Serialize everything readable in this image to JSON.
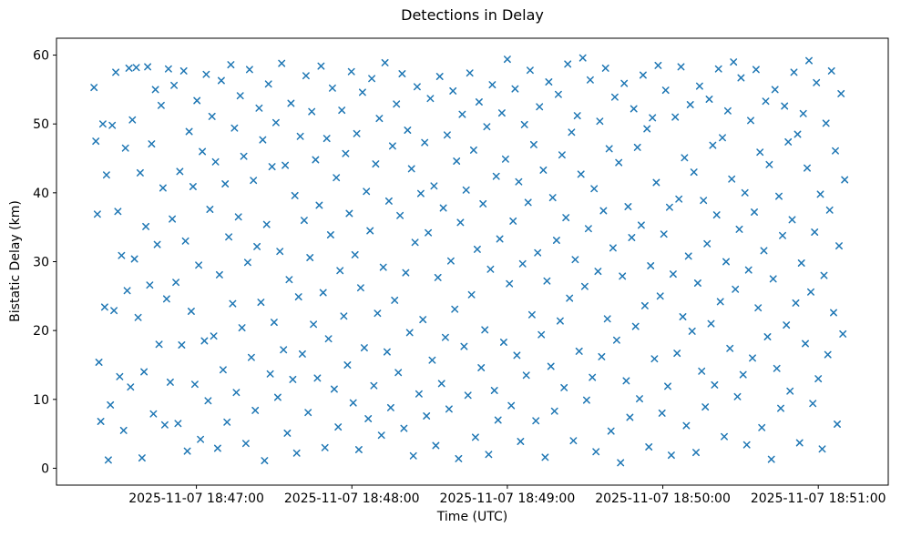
{
  "chart_data": {
    "type": "scatter",
    "title": "Detections in Delay",
    "xlabel": "Time (UTC)",
    "ylabel": "Bistatic Delay (km)",
    "marker": "x",
    "marker_color": "#1f77b4",
    "x_unit": "seconds after 2025-11-07 18:46:00 UTC",
    "xlim": [
      6,
      327
    ],
    "ylim": [
      -2.45,
      62.45
    ],
    "grid": false,
    "legend": null,
    "xticks": [
      {
        "t": 60,
        "label": "2025-11-07 18:47:00"
      },
      {
        "t": 120,
        "label": "2025-11-07 18:48:00"
      },
      {
        "t": 180,
        "label": "2025-11-07 18:49:00"
      },
      {
        "t": 240,
        "label": "2025-11-07 18:50:00"
      },
      {
        "t": 300,
        "label": "2025-11-07 18:51:00"
      }
    ],
    "yticks": [
      0,
      10,
      20,
      30,
      40,
      50,
      60
    ],
    "points": [
      [
        20.5,
        55.3
      ],
      [
        21.2,
        47.5
      ],
      [
        21.8,
        36.9
      ],
      [
        22.4,
        15.4
      ],
      [
        23.1,
        6.8
      ],
      [
        23.9,
        50.0
      ],
      [
        24.6,
        23.4
      ],
      [
        25.3,
        42.6
      ],
      [
        26.0,
        1.2
      ],
      [
        26.8,
        9.2
      ],
      [
        27.5,
        49.8
      ],
      [
        28.2,
        22.9
      ],
      [
        28.9,
        57.5
      ],
      [
        29.7,
        37.3
      ],
      [
        30.4,
        13.3
      ],
      [
        31.1,
        30.9
      ],
      [
        31.9,
        5.5
      ],
      [
        32.6,
        46.5
      ],
      [
        33.3,
        25.8
      ],
      [
        34.0,
        58.1
      ],
      [
        34.6,
        11.8
      ],
      [
        35.3,
        50.6
      ],
      [
        36.1,
        30.4
      ],
      [
        36.8,
        58.2
      ],
      [
        37.5,
        21.9
      ],
      [
        38.3,
        42.9
      ],
      [
        39.0,
        1.5
      ],
      [
        39.8,
        14.0
      ],
      [
        40.5,
        35.1
      ],
      [
        41.2,
        58.3
      ],
      [
        42.0,
        26.6
      ],
      [
        42.7,
        47.1
      ],
      [
        43.4,
        7.9
      ],
      [
        44.2,
        55.0
      ],
      [
        44.9,
        32.5
      ],
      [
        45.6,
        18.0
      ],
      [
        46.4,
        52.7
      ],
      [
        47.1,
        40.7
      ],
      [
        47.8,
        6.3
      ],
      [
        48.5,
        24.6
      ],
      [
        49.2,
        58.0
      ],
      [
        49.9,
        12.5
      ],
      [
        50.7,
        36.2
      ],
      [
        51.4,
        55.6
      ],
      [
        52.1,
        27.0
      ],
      [
        52.9,
        6.5
      ],
      [
        53.6,
        43.1
      ],
      [
        54.3,
        17.9
      ],
      [
        55.1,
        57.7
      ],
      [
        55.8,
        33.0
      ],
      [
        56.5,
        2.5
      ],
      [
        57.2,
        48.9
      ],
      [
        58.0,
        22.8
      ],
      [
        58.7,
        40.9
      ],
      [
        59.4,
        12.2
      ],
      [
        60.2,
        53.4
      ],
      [
        60.9,
        29.5
      ],
      [
        61.6,
        4.2
      ],
      [
        62.3,
        46.0
      ],
      [
        63.1,
        18.5
      ],
      [
        63.8,
        57.2
      ],
      [
        64.5,
        9.8
      ],
      [
        65.2,
        37.6
      ],
      [
        66.0,
        51.1
      ],
      [
        66.7,
        19.2
      ],
      [
        67.4,
        44.5
      ],
      [
        68.2,
        2.9
      ],
      [
        68.9,
        28.1
      ],
      [
        69.6,
        56.3
      ],
      [
        70.3,
        14.3
      ],
      [
        71.1,
        41.3
      ],
      [
        71.8,
        6.7
      ],
      [
        72.5,
        33.6
      ],
      [
        73.3,
        58.6
      ],
      [
        74.0,
        23.9
      ],
      [
        74.7,
        49.4
      ],
      [
        75.4,
        11.0
      ],
      [
        76.2,
        36.5
      ],
      [
        76.9,
        54.1
      ],
      [
        77.6,
        20.4
      ],
      [
        78.3,
        45.3
      ],
      [
        79.1,
        3.6
      ],
      [
        79.8,
        29.9
      ],
      [
        80.5,
        57.9
      ],
      [
        81.2,
        16.1
      ],
      [
        82.0,
        41.8
      ],
      [
        82.7,
        8.4
      ],
      [
        83.4,
        32.2
      ],
      [
        84.2,
        52.3
      ],
      [
        84.9,
        24.1
      ],
      [
        85.6,
        47.7
      ],
      [
        86.3,
        1.1
      ],
      [
        87.1,
        35.4
      ],
      [
        87.8,
        55.8
      ],
      [
        88.5,
        13.7
      ],
      [
        89.2,
        43.8
      ],
      [
        90.0,
        21.2
      ],
      [
        90.7,
        50.2
      ],
      [
        91.4,
        10.3
      ],
      [
        92.2,
        31.5
      ],
      [
        92.9,
        58.8
      ],
      [
        93.6,
        17.2
      ],
      [
        94.3,
        44.0
      ],
      [
        95.1,
        5.1
      ],
      [
        95.8,
        27.4
      ],
      [
        96.5,
        53.0
      ],
      [
        97.2,
        12.9
      ],
      [
        98.0,
        39.6
      ],
      [
        98.7,
        2.2
      ],
      [
        99.4,
        24.9
      ],
      [
        100.1,
        48.2
      ],
      [
        100.9,
        16.6
      ],
      [
        101.6,
        36.0
      ],
      [
        102.3,
        57.0
      ],
      [
        103.1,
        8.1
      ],
      [
        103.8,
        30.6
      ],
      [
        104.5,
        51.8
      ],
      [
        105.2,
        20.9
      ],
      [
        106.0,
        44.8
      ],
      [
        106.7,
        13.1
      ],
      [
        107.4,
        38.2
      ],
      [
        108.1,
        58.4
      ],
      [
        108.9,
        25.5
      ],
      [
        109.6,
        3.0
      ],
      [
        110.3,
        47.9
      ],
      [
        111.0,
        18.8
      ],
      [
        111.8,
        33.9
      ],
      [
        112.5,
        55.2
      ],
      [
        113.2,
        11.5
      ],
      [
        114.0,
        42.2
      ],
      [
        114.7,
        6.0
      ],
      [
        115.4,
        28.7
      ],
      [
        116.1,
        52.0
      ],
      [
        116.9,
        22.1
      ],
      [
        117.6,
        45.7
      ],
      [
        118.3,
        15.0
      ],
      [
        119.0,
        37.0
      ],
      [
        119.8,
        57.6
      ],
      [
        120.5,
        9.5
      ],
      [
        121.2,
        31.0
      ],
      [
        121.9,
        48.6
      ],
      [
        122.7,
        2.7
      ],
      [
        123.4,
        26.2
      ],
      [
        124.1,
        54.6
      ],
      [
        124.8,
        17.5
      ],
      [
        125.6,
        40.2
      ],
      [
        126.3,
        7.2
      ],
      [
        127.0,
        34.5
      ],
      [
        127.7,
        56.6
      ],
      [
        128.5,
        12.0
      ],
      [
        129.2,
        44.2
      ],
      [
        129.9,
        22.5
      ],
      [
        130.6,
        50.8
      ],
      [
        131.4,
        4.8
      ],
      [
        132.1,
        29.2
      ],
      [
        132.8,
        58.9
      ],
      [
        133.6,
        16.9
      ],
      [
        134.3,
        38.8
      ],
      [
        135.0,
        8.8
      ],
      [
        135.7,
        46.8
      ],
      [
        136.5,
        24.4
      ],
      [
        137.2,
        52.9
      ],
      [
        137.9,
        13.9
      ],
      [
        138.6,
        36.7
      ],
      [
        139.4,
        57.3
      ],
      [
        140.1,
        5.8
      ],
      [
        140.8,
        28.4
      ],
      [
        141.5,
        49.1
      ],
      [
        142.3,
        19.7
      ],
      [
        143.0,
        43.5
      ],
      [
        143.7,
        1.8
      ],
      [
        144.4,
        32.8
      ],
      [
        145.2,
        55.4
      ],
      [
        145.9,
        10.8
      ],
      [
        146.6,
        39.9
      ],
      [
        147.4,
        21.6
      ],
      [
        148.1,
        47.3
      ],
      [
        148.8,
        7.6
      ],
      [
        149.5,
        34.2
      ],
      [
        150.3,
        53.7
      ],
      [
        151.0,
        15.7
      ],
      [
        151.7,
        41.0
      ],
      [
        152.4,
        3.3
      ],
      [
        153.2,
        27.7
      ],
      [
        153.9,
        56.9
      ],
      [
        154.6,
        12.3
      ],
      [
        155.3,
        37.8
      ],
      [
        156.1,
        19.0
      ],
      [
        156.8,
        48.4
      ],
      [
        157.5,
        8.6
      ],
      [
        158.2,
        30.1
      ],
      [
        159.0,
        54.8
      ],
      [
        159.7,
        23.1
      ],
      [
        160.4,
        44.6
      ],
      [
        161.2,
        1.4
      ],
      [
        161.9,
        35.7
      ],
      [
        162.6,
        51.4
      ],
      [
        163.3,
        17.7
      ],
      [
        164.1,
        40.4
      ],
      [
        164.8,
        10.6
      ],
      [
        165.5,
        57.4
      ],
      [
        166.2,
        25.2
      ],
      [
        167.0,
        46.2
      ],
      [
        167.7,
        4.5
      ],
      [
        168.4,
        31.8
      ],
      [
        169.1,
        53.2
      ],
      [
        169.9,
        14.6
      ],
      [
        170.6,
        38.4
      ],
      [
        171.3,
        20.1
      ],
      [
        172.1,
        49.6
      ],
      [
        172.8,
        2.0
      ],
      [
        173.5,
        28.9
      ],
      [
        174.2,
        55.7
      ],
      [
        175.0,
        11.3
      ],
      [
        175.7,
        42.4
      ],
      [
        176.4,
        7.0
      ],
      [
        177.1,
        33.3
      ],
      [
        177.9,
        51.6
      ],
      [
        178.6,
        18.3
      ],
      [
        179.3,
        44.9
      ],
      [
        180.0,
        59.4
      ],
      [
        180.8,
        26.8
      ],
      [
        181.5,
        9.1
      ],
      [
        182.2,
        35.9
      ],
      [
        183.0,
        55.1
      ],
      [
        183.7,
        16.4
      ],
      [
        184.4,
        41.6
      ],
      [
        185.1,
        3.9
      ],
      [
        185.9,
        29.7
      ],
      [
        186.6,
        49.9
      ],
      [
        187.3,
        13.5
      ],
      [
        188.0,
        38.6
      ],
      [
        188.8,
        57.8
      ],
      [
        189.5,
        22.3
      ],
      [
        190.2,
        47.0
      ],
      [
        191.0,
        6.9
      ],
      [
        191.7,
        31.3
      ],
      [
        192.4,
        52.5
      ],
      [
        193.1,
        19.4
      ],
      [
        193.9,
        43.3
      ],
      [
        194.6,
        1.6
      ],
      [
        195.3,
        27.2
      ],
      [
        196.0,
        56.1
      ],
      [
        196.8,
        14.8
      ],
      [
        197.5,
        39.3
      ],
      [
        198.2,
        8.3
      ],
      [
        199.0,
        33.1
      ],
      [
        199.7,
        54.3
      ],
      [
        200.4,
        21.4
      ],
      [
        201.1,
        45.5
      ],
      [
        201.9,
        11.7
      ],
      [
        202.6,
        36.4
      ],
      [
        203.3,
        58.7
      ],
      [
        204.0,
        24.7
      ],
      [
        204.8,
        48.8
      ],
      [
        205.5,
        4.0
      ],
      [
        206.2,
        30.3
      ],
      [
        207.0,
        51.2
      ],
      [
        207.7,
        17.0
      ],
      [
        208.4,
        42.7
      ],
      [
        209.1,
        59.6
      ],
      [
        209.9,
        26.4
      ],
      [
        210.6,
        9.9
      ],
      [
        211.3,
        34.8
      ],
      [
        212.0,
        56.4
      ],
      [
        212.8,
        13.2
      ],
      [
        213.5,
        40.6
      ],
      [
        214.2,
        2.4
      ],
      [
        215.0,
        28.6
      ],
      [
        215.7,
        50.4
      ],
      [
        216.4,
        16.2
      ],
      [
        217.1,
        37.4
      ],
      [
        217.9,
        58.1
      ],
      [
        218.6,
        21.7
      ],
      [
        219.3,
        46.4
      ],
      [
        220.0,
        5.4
      ],
      [
        220.8,
        32.0
      ],
      [
        221.5,
        53.9
      ],
      [
        222.2,
        18.6
      ],
      [
        223.0,
        44.4
      ],
      [
        223.7,
        0.8
      ],
      [
        224.4,
        27.9
      ],
      [
        225.1,
        55.9
      ],
      [
        225.9,
        12.7
      ],
      [
        226.6,
        38.0
      ],
      [
        227.3,
        7.4
      ],
      [
        228.0,
        33.5
      ],
      [
        228.8,
        52.2
      ],
      [
        229.5,
        20.6
      ],
      [
        230.2,
        46.6
      ],
      [
        231.0,
        10.1
      ],
      [
        231.7,
        35.3
      ],
      [
        232.4,
        57.1
      ],
      [
        233.1,
        23.6
      ],
      [
        233.9,
        49.3
      ],
      [
        234.6,
        3.1
      ],
      [
        235.3,
        29.4
      ],
      [
        236.0,
        50.9
      ],
      [
        236.8,
        15.9
      ],
      [
        237.5,
        41.5
      ],
      [
        238.2,
        58.5
      ],
      [
        239.0,
        25.0
      ],
      [
        239.7,
        8.0
      ],
      [
        240.4,
        34.0
      ],
      [
        241.1,
        54.9
      ],
      [
        241.9,
        11.9
      ],
      [
        242.6,
        37.9
      ],
      [
        243.3,
        1.9
      ],
      [
        244.0,
        28.2
      ],
      [
        244.8,
        51.0
      ],
      [
        245.5,
        16.7
      ],
      [
        246.2,
        39.1
      ],
      [
        247.0,
        58.3
      ],
      [
        247.7,
        22.0
      ],
      [
        248.4,
        45.1
      ],
      [
        249.1,
        6.2
      ],
      [
        249.9,
        30.8
      ],
      [
        250.6,
        52.8
      ],
      [
        251.3,
        19.9
      ],
      [
        252.0,
        43.0
      ],
      [
        252.8,
        2.3
      ],
      [
        253.5,
        26.9
      ],
      [
        254.2,
        55.5
      ],
      [
        255.0,
        14.1
      ],
      [
        255.7,
        38.9
      ],
      [
        256.4,
        8.9
      ],
      [
        257.1,
        32.6
      ],
      [
        257.9,
        53.6
      ],
      [
        258.6,
        21.0
      ],
      [
        259.3,
        46.9
      ],
      [
        260.0,
        12.1
      ],
      [
        260.8,
        36.8
      ],
      [
        261.5,
        58.0
      ],
      [
        262.2,
        24.2
      ],
      [
        263.0,
        48.0
      ],
      [
        263.7,
        4.6
      ],
      [
        264.4,
        30.0
      ],
      [
        265.1,
        51.9
      ],
      [
        265.9,
        17.4
      ],
      [
        266.6,
        42.0
      ],
      [
        267.3,
        59.0
      ],
      [
        268.0,
        26.0
      ],
      [
        268.8,
        10.4
      ],
      [
        269.5,
        34.7
      ],
      [
        270.2,
        56.7
      ],
      [
        271.0,
        13.6
      ],
      [
        271.7,
        40.0
      ],
      [
        272.4,
        3.4
      ],
      [
        273.1,
        28.8
      ],
      [
        273.9,
        50.5
      ],
      [
        274.6,
        16.0
      ],
      [
        275.3,
        37.2
      ],
      [
        276.0,
        57.9
      ],
      [
        276.8,
        23.3
      ],
      [
        277.5,
        45.9
      ],
      [
        278.2,
        5.9
      ],
      [
        279.0,
        31.6
      ],
      [
        279.7,
        53.3
      ],
      [
        280.4,
        19.1
      ],
      [
        281.1,
        44.1
      ],
      [
        281.9,
        1.3
      ],
      [
        282.6,
        27.5
      ],
      [
        283.3,
        55.0
      ],
      [
        284.0,
        14.5
      ],
      [
        284.8,
        39.5
      ],
      [
        285.5,
        8.7
      ],
      [
        286.2,
        33.8
      ],
      [
        287.0,
        52.6
      ],
      [
        287.7,
        20.8
      ],
      [
        288.4,
        47.4
      ],
      [
        289.1,
        11.2
      ],
      [
        289.9,
        36.1
      ],
      [
        290.6,
        57.5
      ],
      [
        291.3,
        24.0
      ],
      [
        292.0,
        48.5
      ],
      [
        292.8,
        3.7
      ],
      [
        293.5,
        29.8
      ],
      [
        294.2,
        51.5
      ],
      [
        295.0,
        18.1
      ],
      [
        295.7,
        43.6
      ],
      [
        296.4,
        59.2
      ],
      [
        297.1,
        25.6
      ],
      [
        297.9,
        9.4
      ],
      [
        298.6,
        34.3
      ],
      [
        299.3,
        56.0
      ],
      [
        300.0,
        13.0
      ],
      [
        300.8,
        39.8
      ],
      [
        301.5,
        2.8
      ],
      [
        302.2,
        28.0
      ],
      [
        303.0,
        50.1
      ],
      [
        303.7,
        16.5
      ],
      [
        304.4,
        37.5
      ],
      [
        305.1,
        57.7
      ],
      [
        305.9,
        22.6
      ],
      [
        306.6,
        46.1
      ],
      [
        307.3,
        6.4
      ],
      [
        308.0,
        32.3
      ],
      [
        308.8,
        54.4
      ],
      [
        309.5,
        19.5
      ],
      [
        310.2,
        41.9
      ]
    ]
  }
}
